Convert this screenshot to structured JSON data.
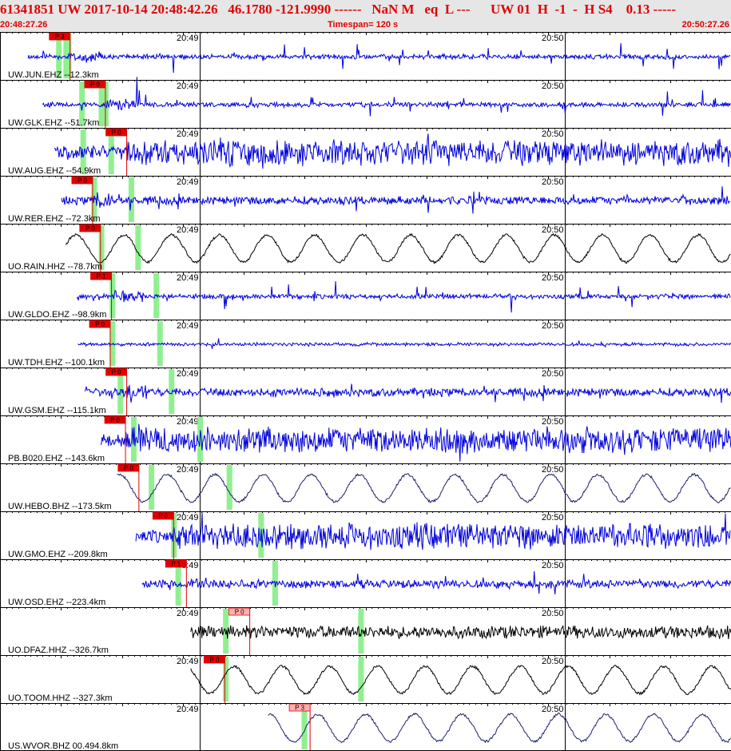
{
  "header": {
    "event_line": "61341851 UW 2017-10-14 20:48:42.26   46.1780 -121.9990 ------   NaN M   eq  L ---      UW 01  H  -1  -  H S4    0.13 -----",
    "start_time": "20:48:27.26",
    "timespan": "Timespan= 120 s",
    "end_time": "20:50:27.26"
  },
  "time_ticks": [
    "20:49",
    "20:50"
  ],
  "colors": {
    "header_text": "#e00000",
    "header_bg": "#e6e6e6",
    "trace_blue": "#0000dd",
    "trace_black": "#000000",
    "trace_navy": "#202070",
    "pick": "#e00000",
    "pick_light": "#ffb0b0",
    "window": "#90f090"
  },
  "traces": [
    {
      "label": "UW.JUN.EHZ --12.3km",
      "pick_label": "P 3",
      "color": "blue",
      "style": "spiky",
      "start_s": 4.6,
      "pick_s": 11.5,
      "windows_s": [
        9.6,
        10.8,
        11.2
      ],
      "pick_light": false
    },
    {
      "label": "UW.GLK.EHZ --51.7km",
      "pick_label": "P 0",
      "color": "blue",
      "style": "spiky",
      "start_s": 7.0,
      "pick_s": 17.3,
      "windows_s": [
        13.4,
        16.6,
        17.3
      ],
      "pick_light": false
    },
    {
      "label": "UW.AUG.EHZ --54.9km",
      "pick_label": "P 0",
      "color": "blue",
      "style": "noisy",
      "start_s": 8.9,
      "pick_s": 20.8,
      "windows_s": [
        13.6,
        18.2
      ],
      "pick_light": false
    },
    {
      "label": "UW.RER.EHZ --72.3km",
      "pick_label": "P 0",
      "color": "blue",
      "style": "medium",
      "start_s": 10.1,
      "pick_s": 15.2,
      "windows_s": [
        15.4,
        21.5
      ],
      "pick_light": false
    },
    {
      "label": "UO.RAIN.HHZ --78.7km",
      "pick_label": "P 0",
      "color": "black",
      "style": "wavy",
      "start_s": 10.8,
      "pick_s": 16.5,
      "windows_s": [
        16.6,
        22.6
      ],
      "pick_light": false
    },
    {
      "label": "UW.GLDO.EHZ --98.9km",
      "pick_label": "P 1",
      "color": "blue",
      "style": "spiky",
      "start_s": 12.6,
      "pick_s": 18.3,
      "windows_s": [
        18.4,
        25.6
      ],
      "pick_light": false
    },
    {
      "label": "UW.TDH.EHZ --100.1km",
      "pick_label": "P 0",
      "color": "blue",
      "style": "quiet",
      "start_s": 12.8,
      "pick_s": 18.1,
      "windows_s": [
        18.4,
        26.2
      ],
      "pick_light": false
    },
    {
      "label": "UW.GSM.EHZ --115.1km",
      "pick_label": "P 0",
      "color": "blue",
      "style": "medium",
      "start_s": 13.9,
      "pick_s": 20.8,
      "windows_s": [
        19.7,
        28.1
      ],
      "pick_light": false
    },
    {
      "label": "PB.B020.EHZ --143.6km",
      "pick_label": "P 0",
      "color": "blue",
      "style": "noisy",
      "start_s": 16.5,
      "pick_s": 20.6,
      "windows_s": [
        21.9,
        32.8
      ],
      "pick_light": false
    },
    {
      "label": "UW.HEBO.BHZ --173.5km",
      "pick_label": "P 0",
      "color": "navy",
      "style": "wavy",
      "start_s": 19.2,
      "pick_s": 22.8,
      "windows_s": [
        24.8,
        37.6
      ],
      "pick_light": false
    },
    {
      "label": "UW.GMO.EHZ --209.8km",
      "pick_label": "P 0",
      "color": "blue",
      "style": "noisy",
      "start_s": 22.3,
      "pick_s": 28.5,
      "windows_s": [
        28.5,
        42.8
      ],
      "pick_light": false
    },
    {
      "label": "UW.OSD.EHZ --223.4km",
      "pick_label": "P 1",
      "color": "blue",
      "style": "medium",
      "start_s": 23.3,
      "pick_s": 30.6,
      "windows_s": [
        29.2,
        45.1
      ],
      "pick_light": false
    },
    {
      "label": "UO.DFAZ.HHZ --326.7km",
      "pick_label": "P 0",
      "color": "black",
      "style": "noisy_small",
      "start_s": 31.3,
      "pick_s": 41.0,
      "windows_s": [
        37.0,
        59.2
      ],
      "pick_light": true
    },
    {
      "label": "UO.TOOM.HHZ --327.3km",
      "pick_label": "P 0",
      "color": "black",
      "style": "wavy",
      "start_s": 31.3,
      "pick_s": 36.9,
      "windows_s": [
        37.0,
        59.2
      ],
      "pick_light": false
    },
    {
      "label": "US.WVOR.BHZ 00.494.8km",
      "pick_label": "P 3",
      "color": "navy",
      "style": "wavy",
      "start_s": 44.0,
      "pick_s": 50.9,
      "windows_s": [
        49.9
      ],
      "pick_light": true
    }
  ]
}
